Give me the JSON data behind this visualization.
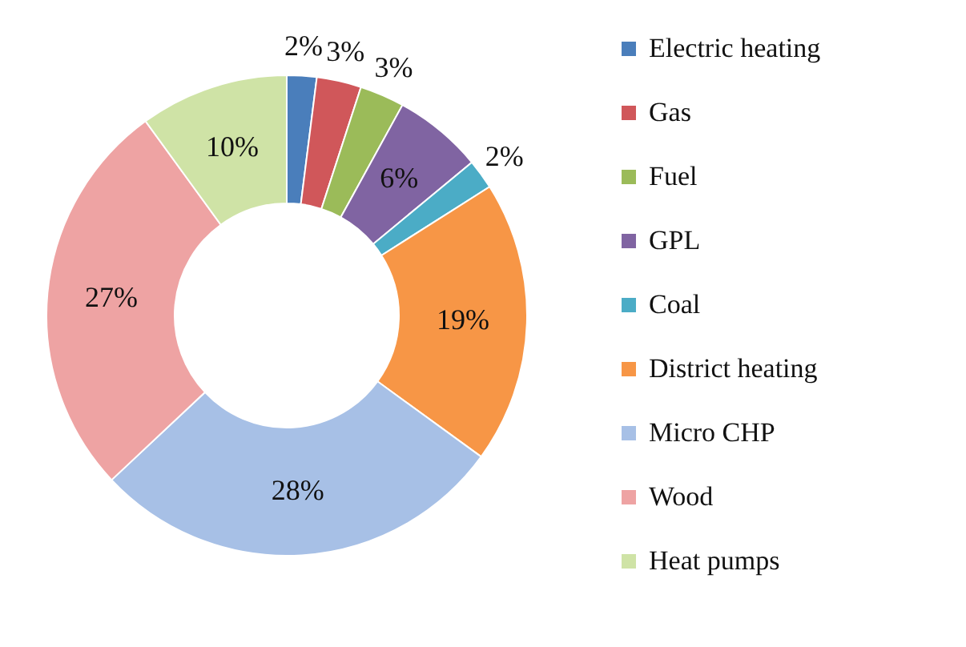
{
  "chart_data": {
    "type": "donut",
    "categories": [
      "Electric heating",
      "Gas",
      "Fuel",
      "GPL",
      "Coal",
      "District heating",
      "Micro CHP",
      "Wood",
      "Heat pumps"
    ],
    "values": [
      2,
      3,
      3,
      6,
      2,
      19,
      28,
      27,
      10
    ],
    "value_labels": [
      "2%",
      "3%",
      "3%",
      "6%",
      "2%",
      "19%",
      "28%",
      "27%",
      "10%"
    ],
    "colors": [
      "#4a7ebb",
      "#d0575a",
      "#9bbb59",
      "#8064a2",
      "#4bacc6",
      "#f79646",
      "#a7c0e6",
      "#eea3a3",
      "#cfe3a6"
    ],
    "legend": "right"
  }
}
